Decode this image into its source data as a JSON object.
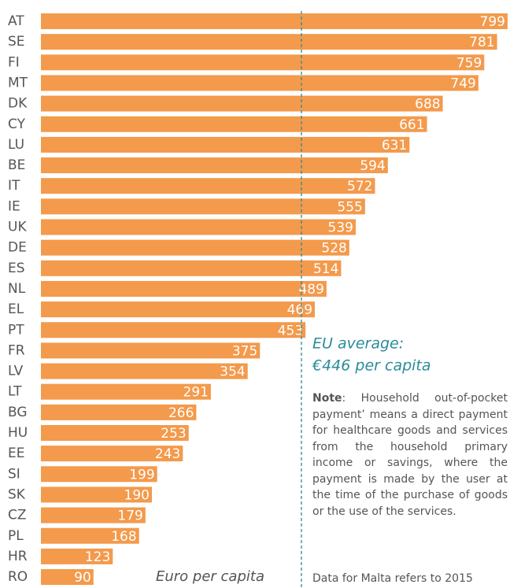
{
  "chart_data": {
    "type": "bar",
    "orientation": "horizontal",
    "categories": [
      "AT",
      "SE",
      "FI",
      "MT",
      "DK",
      "CY",
      "LU",
      "BE",
      "IT",
      "IE",
      "UK",
      "DE",
      "ES",
      "NL",
      "EL",
      "PT",
      "FR",
      "LV",
      "LT",
      "BG",
      "HU",
      "EE",
      "SI",
      "SK",
      "CZ",
      "PL",
      "HR",
      "RO"
    ],
    "values": [
      799,
      781,
      759,
      749,
      688,
      661,
      631,
      594,
      572,
      555,
      539,
      528,
      514,
      489,
      469,
      453,
      375,
      354,
      291,
      266,
      253,
      243,
      199,
      190,
      179,
      168,
      123,
      90
    ],
    "color": "#f39a4c",
    "xlim": [
      0,
      800
    ],
    "x_label": "Euro per capita",
    "reference_line": {
      "value": 446,
      "color": "#2a8c99",
      "label_lines": [
        "EU average:",
        "€446 per capita"
      ]
    },
    "note_label": "Note",
    "note_text": ": Household out-of-pocket payment’ means a direct payment for healthcare goods and services from the household primary income or savings, where the payment is made by the user at the time of the purchase of goods or the use of the services.",
    "footnote": "Data for Malta refers to 2015"
  }
}
